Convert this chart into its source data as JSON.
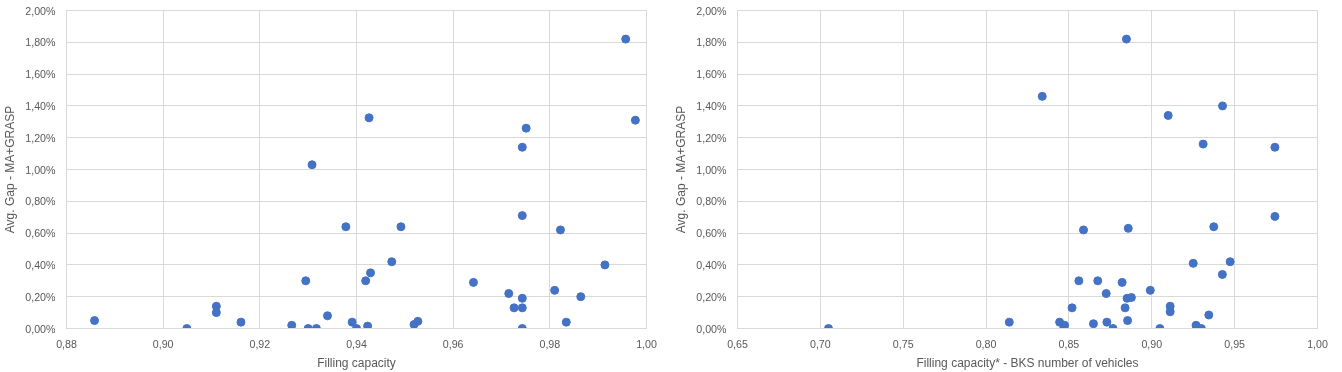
{
  "chart_data": [
    {
      "type": "scatter",
      "xlabel": "Filling capacity",
      "ylabel": "Avg. Gap - MA+GRASP",
      "grid": true,
      "marker": "circle",
      "xlim": [
        0.88,
        1.0
      ],
      "ylim": [
        0,
        2.0
      ],
      "xticks": [
        {
          "value": 0.88,
          "label": "0,88"
        },
        {
          "value": 0.9,
          "label": "0,90"
        },
        {
          "value": 0.92,
          "label": "0,92"
        },
        {
          "value": 0.94,
          "label": "0,94"
        },
        {
          "value": 0.96,
          "label": "0,96"
        },
        {
          "value": 0.98,
          "label": "0,98"
        },
        {
          "value": 1.0,
          "label": "1,00"
        }
      ],
      "yticks": [
        {
          "value": 0,
          "label": "0,00%"
        },
        {
          "value": 0.2,
          "label": "0,20%"
        },
        {
          "value": 0.4,
          "label": "0,40%"
        },
        {
          "value": 0.6,
          "label": "0,60%"
        },
        {
          "value": 0.8,
          "label": "0,80%"
        },
        {
          "value": 1.0,
          "label": "1,00%"
        },
        {
          "value": 1.2,
          "label": "1,20%"
        },
        {
          "value": 1.4,
          "label": "1,40%"
        },
        {
          "value": 1.6,
          "label": "1,60%"
        },
        {
          "value": 1.8,
          "label": "1,80%"
        },
        {
          "value": 2.0,
          "label": "2,00%"
        }
      ],
      "series": [
        {
          "color": "#4472c4",
          "x": [
            0.8858,
            0.9049,
            0.911,
            0.911,
            0.9161,
            0.9266,
            0.9295,
            0.93,
            0.9317,
            0.9308,
            0.934,
            0.9391,
            0.94,
            0.9423,
            0.9426,
            0.9378,
            0.9492,
            0.9473,
            0.9429,
            0.9419,
            0.9519,
            0.9527,
            0.9642,
            0.9715,
            0.9726,
            0.9743,
            0.9743,
            0.9743,
            0.9743,
            0.9743,
            0.9751,
            0.9822,
            0.981,
            0.9864,
            0.9834,
            0.9914,
            0.9957,
            0.9977
          ],
          "values": [
            0.05,
            0,
            0.14,
            0.1,
            0.04,
            0.02,
            0.3,
            0,
            0,
            1.03,
            0.08,
            0.04,
            0,
            0.015,
            1.325,
            0.64,
            0.64,
            0.42,
            0.35,
            0.3,
            0.025,
            0.045,
            0.29,
            0.22,
            0.13,
            0.13,
            0.19,
            0,
            0.71,
            1.14,
            1.26,
            0.62,
            0.24,
            0.2,
            0.04,
            0.4,
            1.82,
            1.31
          ]
        }
      ]
    },
    {
      "type": "scatter",
      "xlabel": "Filling capacity* - BKS number of vehicles",
      "ylabel": "Avg. Gap - MA+GRASP",
      "grid": true,
      "marker": "circle",
      "xlim": [
        0.65,
        1.0
      ],
      "ylim": [
        0,
        2.0
      ],
      "xticks": [
        {
          "value": 0.65,
          "label": "0,65"
        },
        {
          "value": 0.7,
          "label": "0,70"
        },
        {
          "value": 0.75,
          "label": "0,75"
        },
        {
          "value": 0.8,
          "label": "0,80"
        },
        {
          "value": 0.85,
          "label": "0,85"
        },
        {
          "value": 0.9,
          "label": "0,90"
        },
        {
          "value": 0.95,
          "label": "0,95"
        },
        {
          "value": 1.0,
          "label": "1,00"
        }
      ],
      "yticks": [
        {
          "value": 0,
          "label": "0,00%"
        },
        {
          "value": 0.2,
          "label": "0,20%"
        },
        {
          "value": 0.4,
          "label": "0,40%"
        },
        {
          "value": 0.6,
          "label": "0,60%"
        },
        {
          "value": 0.8,
          "label": "0,80%"
        },
        {
          "value": 1.0,
          "label": "1,00%"
        },
        {
          "value": 1.2,
          "label": "1,20%"
        },
        {
          "value": 1.4,
          "label": "1,40%"
        },
        {
          "value": 1.6,
          "label": "1,60%"
        },
        {
          "value": 1.8,
          "label": "1,80%"
        },
        {
          "value": 2.0,
          "label": "2,00%"
        }
      ],
      "series": [
        {
          "color": "#4472c4",
          "x": [
            0.7049,
            0.814,
            0.8339,
            0.8847,
            0.9099,
            0.9427,
            0.931,
            0.9743,
            0.9743,
            0.8588,
            0.8858,
            0.9374,
            0.925,
            0.9473,
            0.9426,
            0.856,
            0.8674,
            0.8821,
            0.8725,
            0.8991,
            0.8851,
            0.8877,
            0.8519,
            0.8839,
            0.9111,
            0.9111,
            0.8444,
            0.8474,
            0.8468,
            0.8648,
            0.8729,
            0.8766,
            0.8847,
            0.8854,
            0.9049,
            0.9267,
            0.9299,
            0.9344
          ],
          "values": [
            0,
            0.04,
            1.46,
            1.82,
            1.34,
            1.4,
            1.16,
            1.14,
            0.705,
            0.62,
            0.63,
            0.64,
            0.41,
            0.42,
            0.34,
            0.3,
            0.3,
            0.29,
            0.22,
            0.24,
            0.19,
            0.195,
            0.13,
            0.13,
            0.14,
            0.105,
            0.04,
            0.02,
            0,
            0.03,
            0.04,
            0,
            null,
            0.05,
            0,
            0.02,
            0,
            0.085
          ]
        }
      ]
    }
  ]
}
